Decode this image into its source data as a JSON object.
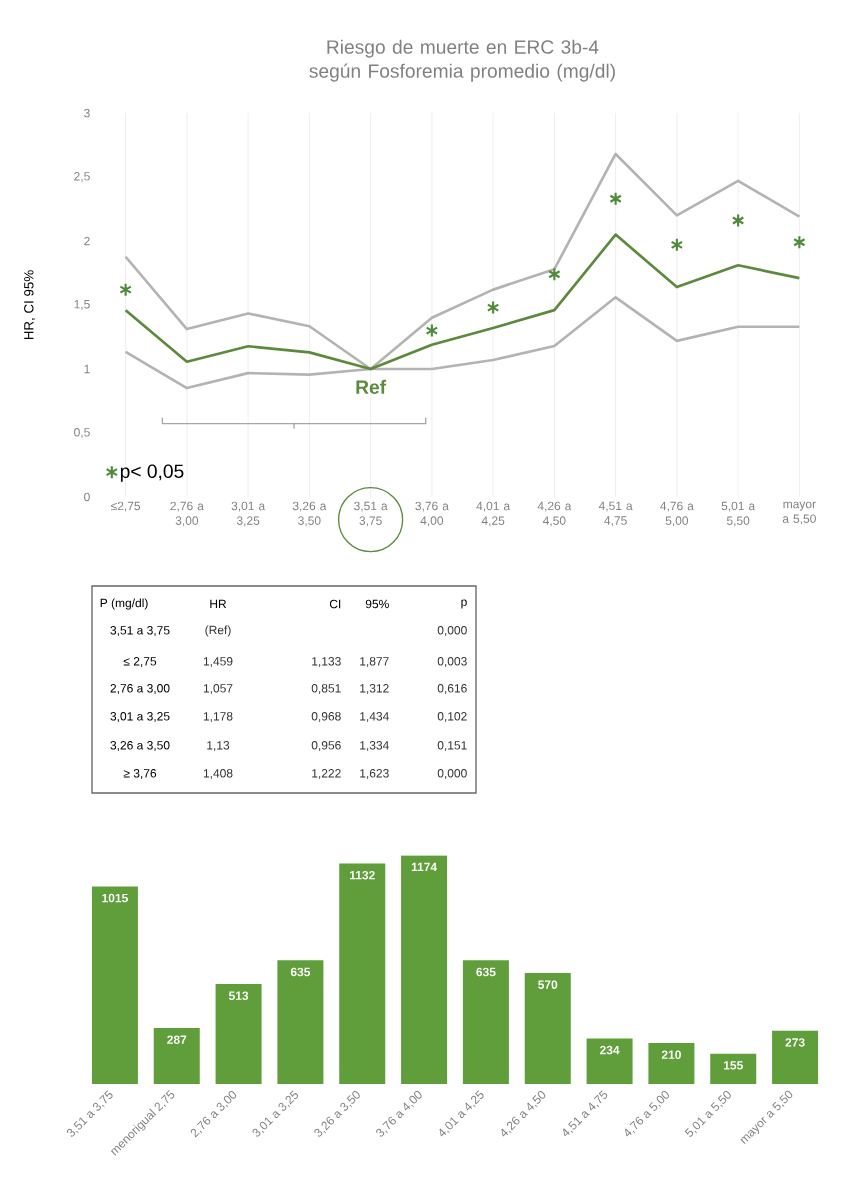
{
  "chart_data": [
    {
      "type": "line",
      "title": "Riesgo de muerte en ERC 3b-4 según Fosforemia promedio (mg/dl)",
      "ylabel": "HR, CI 95%",
      "categories": [
        "≤2,75",
        "2,76 a 3,00",
        "3,01 a 3,25",
        "3,26 a 3,50",
        "3,51 a 3,75",
        "3,76 a 4,00",
        "4,01 a 4,25",
        "4,26 a 4,50",
        "4,51 a 4,75",
        "4,76 a 5,00",
        "5,01 a 5,50",
        "mayor a 5,50"
      ],
      "series": [
        {
          "color": "#b3b3b3",
          "values": [
            1.877,
            1.312,
            1.434,
            1.334,
            1,
            1.4,
            1.62,
            1.78,
            2.68,
            2.2,
            2.47,
            2.19
          ]
        },
        {
          "color": "#b3b3b3",
          "values": [
            1.133,
            0.851,
            0.968,
            0.956,
            1,
            1.0,
            1.07,
            1.18,
            1.56,
            1.22,
            1.33,
            1.33
          ]
        },
        {
          "color": "#5b8a3c",
          "values": [
            1.459,
            1.057,
            1.178,
            1.13,
            1,
            1.19,
            1.32,
            1.46,
            2.05,
            1.64,
            1.81,
            1.71
          ]
        },
        {
          "type": "scatter",
          "name": "p< 0,05",
          "color": "#4e8a3a",
          "marker": "cross",
          "values": [
            1.62,
            null,
            null,
            null,
            null,
            1.3,
            1.48,
            1.74,
            2.33,
            1.97,
            2.16,
            1.99
          ]
        }
      ],
      "ylim": [
        0,
        3
      ],
      "yticks": [
        0,
        {
          "value": 0.5,
          "label": "0,5"
        },
        1,
        {
          "value": 1.5,
          "label": "1,5"
        },
        2,
        {
          "value": 2.5,
          "label": "2,5"
        },
        3
      ],
      "grid": "x",
      "legend": "bottom left",
      "annotations": [
        "Ref"
      ]
    },
    {
      "type": "other",
      "title": "P (mg/dl)",
      "categories": [
        "3,51 a 3,75",
        "≤ 2,75",
        "2,76 a 3,00",
        "3,01 a 3,25",
        "3,26 a 3,50",
        "≥ 3,76"
      ],
      "series": [
        {
          "name": "HR",
          "values": [
            null,
            1.459,
            1.057,
            1.178,
            1.13,
            1.408
          ],
          "value_labels": [
            "(Ref)",
            "1,459",
            "1,057",
            "1,178",
            "1,13",
            "1,408"
          ]
        },
        {
          "name": "CI",
          "values": [
            null,
            1.133,
            0.851,
            0.968,
            0.956,
            1.222
          ],
          "value_labels": [
            null,
            "1,133",
            "0,851",
            "0,968",
            "0,956",
            "1,222"
          ]
        },
        {
          "name": "95%",
          "values": [
            null,
            1.877,
            1.312,
            1.434,
            1.334,
            1.623
          ],
          "value_labels": [
            null,
            "1,877",
            "1,312",
            "1,434",
            "1,334",
            "1,623"
          ]
        },
        {
          "name": "p",
          "values": [
            0.0,
            0.003,
            0.616,
            0.102,
            0.151,
            0.0
          ],
          "value_labels": [
            "0,000",
            "0,003",
            "0,616",
            "0,102",
            "0,151",
            "0,000"
          ]
        }
      ]
    },
    {
      "type": "bar",
      "categories": [
        "3,51 a 3,75",
        "menorigual 2,75",
        "2,76 a 3,00",
        "3,01 a 3,25",
        "3,26 a 3,50",
        "3,76 a 4,00",
        "4,01 a 4,25",
        "4,26 a 4,50",
        "4,51 a 4,75",
        "4,76 a 5,00",
        "5,01 a 5,50",
        "mayor a 5,50"
      ],
      "values": [
        1015,
        287,
        513,
        635,
        1132,
        1174,
        635,
        570,
        234,
        210,
        155,
        273
      ],
      "color": "#5f9e3b",
      "data_labels": true
    }
  ]
}
